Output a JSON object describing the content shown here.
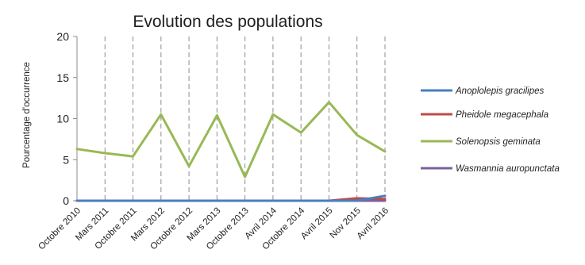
{
  "chart_data": {
    "type": "line",
    "title": "Evolution des populations",
    "ylabel": "Pourcentage d'occurrence",
    "xlabel": "",
    "ylim": [
      0,
      20
    ],
    "yticks": [
      0,
      5,
      10,
      15,
      20
    ],
    "grid": "vertical dashed lines at each category",
    "legend_position": "right",
    "categories": [
      "Octobre 2010",
      "Mars 2011",
      "Octobre 2011",
      "Mars 2012",
      "Octobre 2012",
      "Mars 2013",
      "Octobre 2013",
      "Avril 2014",
      "Octobre 2014",
      "Avril 2015",
      "Nov 2015",
      "Avril 2016"
    ],
    "series": [
      {
        "name": "Anoplolepis gracilipes",
        "color": "#4a7ebb",
        "values": [
          0,
          0,
          0,
          0,
          0,
          0,
          0,
          0,
          0,
          0,
          0,
          0.6
        ]
      },
      {
        "name": "Pheidole megacephala",
        "color": "#be4b48",
        "values": [
          0,
          0,
          0,
          0,
          0,
          0,
          0,
          0,
          0,
          0,
          0.3,
          0.2
        ]
      },
      {
        "name": "Solenopsis geminata",
        "color": "#98b954",
        "values": [
          6.3,
          5.8,
          5.4,
          10.5,
          4.2,
          10.4,
          2.9,
          10.5,
          8.3,
          12.0,
          8.0,
          6.0
        ]
      },
      {
        "name": "Wasmannia auropunctata",
        "color": "#7d60a0",
        "values": [
          0,
          0,
          0,
          0,
          0,
          0,
          0,
          0,
          0,
          0,
          0,
          0
        ]
      }
    ]
  }
}
